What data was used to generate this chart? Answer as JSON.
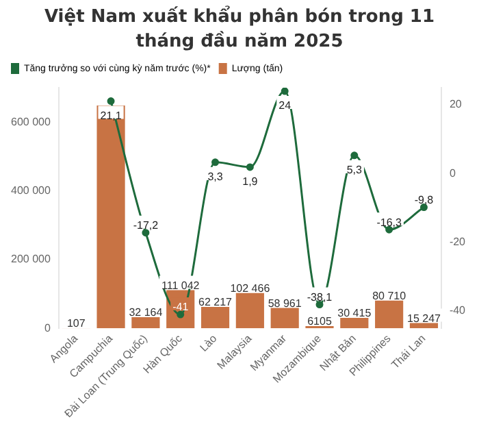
{
  "chart_data": {
    "type": "bar",
    "title": "Việt Nam xuất khẩu phân bón trong 11 tháng đầu năm 2025",
    "categories": [
      "Angola",
      "Campuchia",
      "Đài Loan (Trung Quốc)",
      "Hàn Quốc",
      "Lào",
      "Malaysia",
      "Myanmar",
      "Mozambique",
      "Nhật Bản",
      "Philippines",
      "Thái Lan"
    ],
    "series": [
      {
        "name": "Tăng trưởng so với cùng kỳ năm trước (%)*",
        "type": "line",
        "axis": "y2",
        "color": "#1e6b3c",
        "values": [
          null,
          21.1,
          -17.2,
          -41,
          3.3,
          1.9,
          24,
          -38.1,
          5.3,
          -16.3,
          -9.8
        ],
        "value_labels": [
          null,
          "21,1",
          "-17,2",
          "-41",
          "3,3",
          "1,9",
          "24",
          "-38,1",
          "5,3",
          "-16,3",
          "-9,8"
        ]
      },
      {
        "name": "Lượng (tấn)",
        "color": "#c87344",
        "values": [
          107,
          648000,
          32164,
          111042,
          62217,
          102466,
          58961,
          6105,
          30415,
          80710,
          15247
        ],
        "value_labels": [
          "107",
          null,
          "32 164",
          "111 042",
          "62 217",
          "102 466",
          "58 961",
          "6105",
          "30 415",
          "80 710",
          "15 247"
        ]
      }
    ],
    "ylim": [
      0,
      700000
    ],
    "yticks": [
      0,
      {
        "value": 200000,
        "label": "200 000"
      },
      {
        "value": 400000,
        "label": "400 000"
      },
      {
        "value": 600000,
        "label": "600 000"
      }
    ],
    "y2lim": [
      -45,
      25
    ],
    "y2ticks": [
      -40,
      -20,
      0,
      20
    ],
    "legend": "top left",
    "marker": "circle",
    "grid": false
  }
}
